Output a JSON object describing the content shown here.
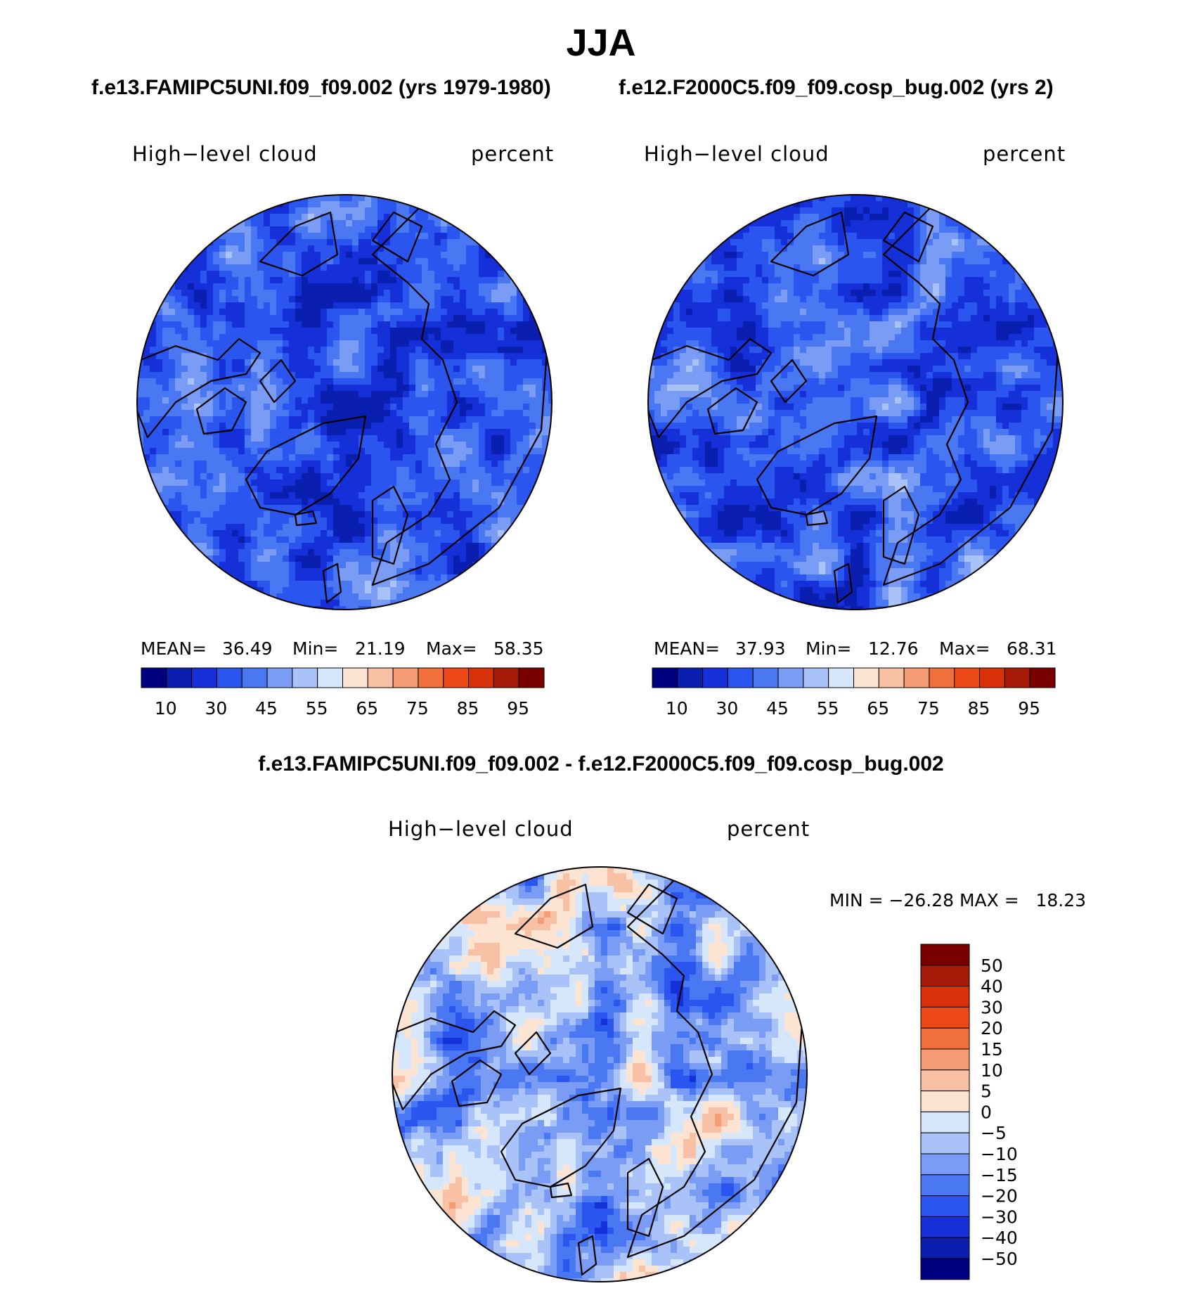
{
  "title": "JJA",
  "panels": [
    {
      "run_title": "f.e13.FAMIPC5UNI.f09_f09.002 (yrs 1979-1980)",
      "variable": "High−level cloud",
      "units": "percent",
      "stats": {
        "mean_label": "MEAN=",
        "mean": "36.49",
        "min_label": "Min=",
        "min": "21.19",
        "max_label": "Max=",
        "max": "58.35"
      },
      "colorbar_ticks": [
        "10",
        "30",
        "45",
        "55",
        "65",
        "75",
        "85",
        "95"
      ]
    },
    {
      "run_title": "f.e12.F2000C5.f09_f09.cosp_bug.002 (yrs 2)",
      "variable": "High−level cloud",
      "units": "percent",
      "stats": {
        "mean_label": "MEAN=",
        "mean": "37.93",
        "min_label": "Min=",
        "min": "12.76",
        "max_label": "Max=",
        "max": "68.31"
      },
      "colorbar_ticks": [
        "10",
        "30",
        "45",
        "55",
        "65",
        "75",
        "85",
        "95"
      ]
    }
  ],
  "difference": {
    "title": "f.e13.FAMIPC5UNI.f09_f09.002 - f.e12.F2000C5.f09_f09.cosp_bug.002",
    "variable": "High−level cloud",
    "units": "percent",
    "minmax_text": "MIN = −26.28 MAX =   18.23",
    "colorbar_ticks": [
      "50",
      "40",
      "30",
      "20",
      "15",
      "10",
      "5",
      "0",
      "−5",
      "−10",
      "−15",
      "−20",
      "−30",
      "−40",
      "−50"
    ]
  },
  "palette": [
    "#000080",
    "#0a1fb0",
    "#1530d8",
    "#2a55ee",
    "#4a77f2",
    "#7a9cf4",
    "#a9c3f8",
    "#d6e6fb",
    "#fde4d2",
    "#f8c0a4",
    "#f59c74",
    "#f2703c",
    "#ee4a18",
    "#d9310a",
    "#a81a08",
    "#7a0000"
  ],
  "map_colors": {
    "abs_base": "#3361e8",
    "diff_base": "#d6e6fb",
    "coastline": "#000000"
  }
}
